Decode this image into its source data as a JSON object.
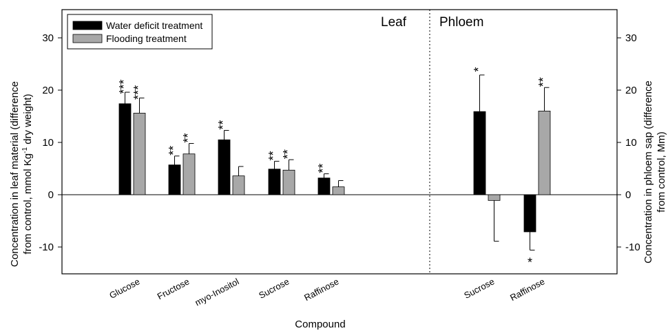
{
  "chart_data": {
    "type": "bar",
    "xlabel": "Compound",
    "ylabel_left": [
      "Concentration in leaf material (difference",
      "from control, mmol Kg",
      "-1",
      " dry weight)"
    ],
    "ylabel_right": [
      "Concentration in phloem sap (difference",
      "from control, Mm)"
    ],
    "ylim": [
      -15,
      35
    ],
    "yticks": [
      -10,
      0,
      10,
      20,
      30
    ],
    "grid": false,
    "legend_position": "top-left",
    "panels": [
      "Leaf",
      "Phloem"
    ],
    "series": [
      {
        "name": "Water deficit treatment",
        "color": "#000000"
      },
      {
        "name": "Flooding treatment",
        "color": "#a8a8a8"
      }
    ],
    "groups": [
      {
        "panel": "Leaf",
        "category": "Glucose",
        "values": [
          17.4,
          15.6
        ],
        "errors": [
          2.2,
          2.9
        ],
        "sig": [
          "***",
          "***"
        ]
      },
      {
        "panel": "Leaf",
        "category": "Fructose",
        "values": [
          5.7,
          7.8
        ],
        "errors": [
          1.7,
          2.0
        ],
        "sig": [
          "**",
          "**"
        ]
      },
      {
        "panel": "Leaf",
        "category": "myo-Inositol",
        "values": [
          10.5,
          3.6
        ],
        "errors": [
          1.8,
          1.8
        ],
        "sig": [
          "**",
          ""
        ]
      },
      {
        "panel": "Leaf",
        "category": "Sucrose",
        "values": [
          4.9,
          4.7
        ],
        "errors": [
          1.5,
          2.0
        ],
        "sig": [
          "**",
          "**"
        ]
      },
      {
        "panel": "Leaf",
        "category": "Raffinose",
        "values": [
          3.2,
          1.5
        ],
        "errors": [
          0.8,
          1.2
        ],
        "sig": [
          "**",
          ""
        ]
      },
      {
        "panel": "Phloem",
        "category": "Sucrose",
        "values": [
          15.9,
          -1.1
        ],
        "errors": [
          7.0,
          7.8
        ],
        "sig": [
          "*",
          ""
        ]
      },
      {
        "panel": "Phloem",
        "category": "Raffinose",
        "values": [
          -7.1,
          16.0
        ],
        "errors": [
          3.5,
          4.5
        ],
        "sig": [
          "*",
          "**"
        ]
      }
    ]
  }
}
